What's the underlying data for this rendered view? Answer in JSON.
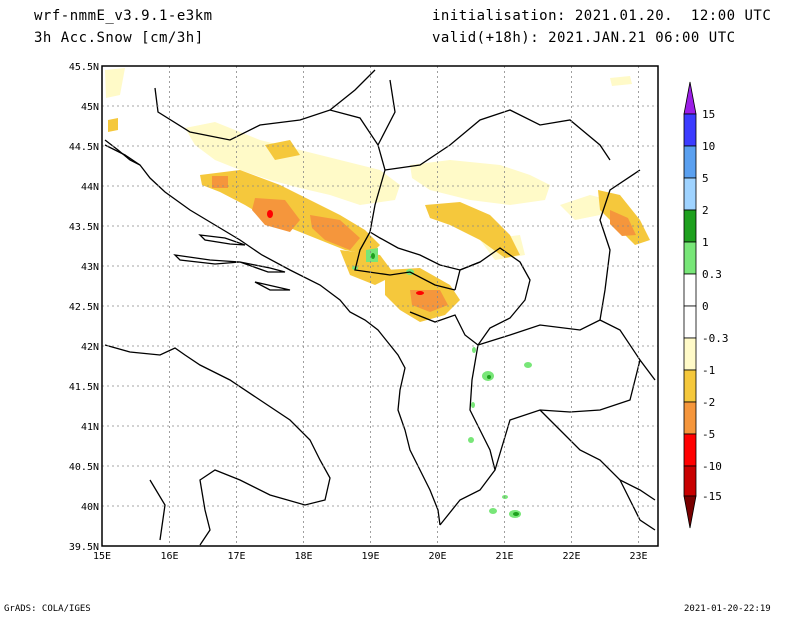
{
  "header": {
    "model": "wrf-nmmE_v3.9.1-e3km",
    "field": "3h Acc.Snow [cm/3h]",
    "init": "initialisation: 2021.01.20.  12:00 UTC",
    "valid": "valid(+18h): 2021.JAN.21 06:00 UTC"
  },
  "footer": {
    "credit": "GrADS: COLA/IGES",
    "timestamp": "2021-01-20-22:19"
  },
  "axes": {
    "lon_ticks": [
      "15E",
      "16E",
      "17E",
      "18E",
      "19E",
      "20E",
      "21E",
      "22E",
      "23E"
    ],
    "lat_ticks": [
      "45.5N",
      "45N",
      "44.5N",
      "44N",
      "43.5N",
      "43N",
      "42.5N",
      "42N",
      "41.5N",
      "41N",
      "40.5N",
      "40N",
      "39.5N"
    ],
    "lon_range": [
      15,
      23.3
    ],
    "lat_range": [
      39.5,
      45.5
    ]
  },
  "colorbar": {
    "labels": [
      "15",
      "10",
      "5",
      "2",
      "1",
      "0.3",
      "0",
      "-0.3",
      "-1",
      "-2",
      "-5",
      "-10",
      "-15"
    ],
    "colors": [
      "#9b1ee6",
      "#3c3cff",
      "#5aa0f0",
      "#9fd3ff",
      "#1ea01e",
      "#78e678",
      "#ffffff",
      "#fffac8",
      "#f5c83c",
      "#f5963c",
      "#ff0000",
      "#c80000",
      "#780000"
    ]
  }
}
